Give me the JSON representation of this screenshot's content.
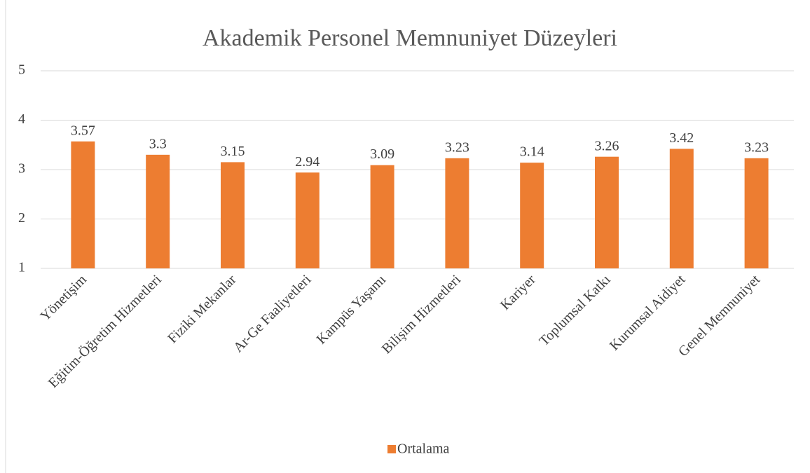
{
  "chart_data": {
    "type": "bar",
    "title": "Akademik Personel Memnuniyet Düzeyleri",
    "categories": [
      "Yönetişim",
      "Eğitim-Öğretim Hizmetleri",
      "Fiziki Mekanlar",
      "Ar-Ge Faaliyetleri",
      "Kampüs Yaşamı",
      "Bilişim Hizmetleri",
      "Kariyer",
      "Toplumsal Katkı",
      "Kurumsal Aidiyet",
      "Genel Memnuniyet"
    ],
    "series": [
      {
        "name": "Ortalama",
        "color": "#ed7d31",
        "values": [
          3.57,
          3.3,
          3.15,
          2.94,
          3.09,
          3.23,
          3.14,
          3.26,
          3.42,
          3.23
        ]
      }
    ],
    "ylim": [
      1,
      5
    ],
    "yticks": [
      1,
      2,
      3,
      4,
      5
    ],
    "grid": true,
    "legend": "bottom"
  }
}
